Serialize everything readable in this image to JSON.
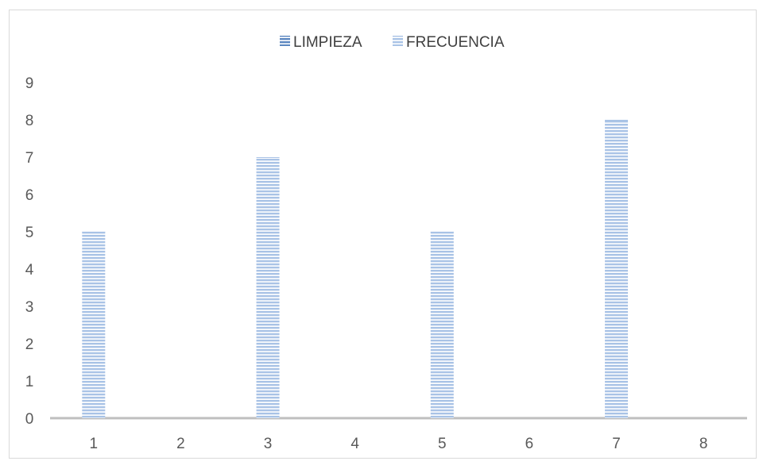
{
  "chart_data": {
    "type": "bar",
    "categories": [
      "1",
      "2",
      "3",
      "4",
      "5",
      "6",
      "7",
      "8"
    ],
    "series": [
      {
        "name": "LIMPIEZA",
        "values": [
          0,
          0,
          0,
          0,
          0,
          0,
          0,
          0
        ],
        "color": "#5b87c0"
      },
      {
        "name": "FRECUENCIA",
        "values": [
          5,
          0,
          7,
          0,
          5,
          0,
          8,
          0
        ],
        "color": "#a9c3e6"
      }
    ],
    "yticks": [
      "0",
      "1",
      "2",
      "3",
      "4",
      "5",
      "6",
      "7",
      "8",
      "9"
    ],
    "ylim": [
      0,
      9
    ],
    "grid": false,
    "legend": "top-center",
    "title": "",
    "xlabel": "",
    "ylabel": ""
  }
}
